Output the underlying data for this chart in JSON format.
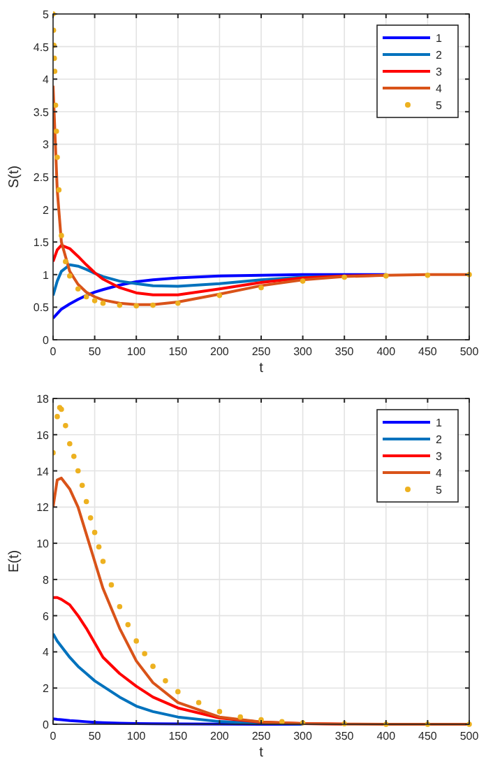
{
  "chart_data": [
    {
      "type": "line",
      "xlabel": "t",
      "ylabel": "S(t)",
      "xlim": [
        0,
        500
      ],
      "ylim": [
        0,
        5
      ],
      "xticks": [
        0,
        50,
        100,
        150,
        200,
        250,
        300,
        350,
        400,
        450,
        500
      ],
      "yticks": [
        0,
        0.5,
        1,
        1.5,
        2,
        2.5,
        3,
        3.5,
        4,
        4.5,
        5
      ],
      "grid": true,
      "legend": "top right",
      "marker": "none",
      "x": [
        0,
        5,
        10,
        20,
        30,
        40,
        50,
        60,
        80,
        100,
        120,
        150,
        200,
        250,
        300,
        350,
        400,
        450,
        500
      ],
      "series": [
        {
          "name": "1",
          "color": "#0000ff",
          "values": [
            0.33,
            0.4,
            0.47,
            0.55,
            0.62,
            0.68,
            0.73,
            0.77,
            0.84,
            0.89,
            0.92,
            0.95,
            0.98,
            0.99,
            1,
            1,
            1,
            null,
            null
          ]
        },
        {
          "name": "2",
          "color": "#0072bd",
          "values": [
            0.68,
            0.9,
            1.05,
            1.15,
            1.13,
            1.08,
            1.02,
            0.97,
            0.9,
            0.86,
            0.83,
            0.82,
            0.86,
            0.92,
            0.96,
            0.98,
            null,
            null,
            null
          ]
        },
        {
          "name": "3",
          "color": "#ff0000",
          "values": [
            1.2,
            1.38,
            1.45,
            1.4,
            1.28,
            1.15,
            1.03,
            0.93,
            0.8,
            0.72,
            0.69,
            0.69,
            0.78,
            0.88,
            0.95,
            0.98,
            0.99,
            null,
            null
          ]
        },
        {
          "name": "4",
          "color": "#d95319",
          "values": [
            3.9,
            2.3,
            1.5,
            1.05,
            0.85,
            0.73,
            0.66,
            0.61,
            0.56,
            0.54,
            0.54,
            0.58,
            0.7,
            0.83,
            0.92,
            0.97,
            0.99,
            1,
            1
          ]
        },
        {
          "name": "5",
          "color": "#edb120",
          "type": "scatter",
          "marker": "circle",
          "x": [
            0,
            0.5,
            1,
            1.5,
            2,
            3,
            4,
            5,
            7,
            10,
            15,
            20,
            30,
            40,
            50,
            60,
            80,
            100,
            120,
            150,
            200,
            250,
            300,
            350,
            400,
            450,
            500
          ],
          "values": [
            5,
            4.75,
            4.52,
            4.32,
            4.12,
            3.6,
            3.2,
            2.8,
            2.3,
            1.6,
            1.2,
            0.98,
            0.78,
            0.66,
            0.6,
            0.56,
            0.53,
            0.52,
            0.53,
            0.56,
            0.68,
            0.8,
            0.9,
            0.96,
            0.98,
            0.99,
            1
          ]
        }
      ]
    },
    {
      "type": "line",
      "xlabel": "t",
      "ylabel": "E(t)",
      "xlim": [
        0,
        500
      ],
      "ylim": [
        0,
        18
      ],
      "xticks": [
        0,
        50,
        100,
        150,
        200,
        250,
        300,
        350,
        400,
        450,
        500
      ],
      "yticks": [
        0,
        2,
        4,
        6,
        8,
        10,
        12,
        14,
        16,
        18
      ],
      "grid": true,
      "legend": "top right",
      "marker": "none",
      "x": [
        0,
        5,
        10,
        20,
        30,
        40,
        50,
        60,
        80,
        100,
        120,
        150,
        200,
        250,
        300,
        350,
        400,
        450,
        500
      ],
      "series": [
        {
          "name": "1",
          "color": "#0000ff",
          "values": [
            0.3,
            0.27,
            0.25,
            0.2,
            0.17,
            0.14,
            0.11,
            0.09,
            0.06,
            0.04,
            0.03,
            0.02,
            0.01,
            0,
            0,
            null,
            null,
            null,
            null
          ]
        },
        {
          "name": "2",
          "color": "#0072bd",
          "values": [
            5,
            4.6,
            4.3,
            3.7,
            3.2,
            2.8,
            2.4,
            2.1,
            1.5,
            1,
            0.7,
            0.4,
            0.15,
            0.05,
            0.02,
            null,
            null,
            null,
            null
          ]
        },
        {
          "name": "3",
          "color": "#ff0000",
          "values": [
            7,
            7,
            6.9,
            6.6,
            6,
            5.3,
            4.5,
            3.7,
            2.8,
            2.1,
            1.5,
            0.9,
            0.35,
            0.12,
            0.04,
            0.01,
            null,
            null,
            null
          ]
        },
        {
          "name": "4",
          "color": "#d95319",
          "values": [
            12,
            13.5,
            13.6,
            13,
            12,
            10.5,
            9,
            7.5,
            5.3,
            3.5,
            2.3,
            1.2,
            0.4,
            0.13,
            0.04,
            0.01,
            0,
            0,
            0
          ]
        },
        {
          "name": "5",
          "color": "#edb120",
          "type": "scatter",
          "marker": "circle",
          "x": [
            0,
            5,
            8,
            10,
            15,
            20,
            25,
            30,
            35,
            40,
            45,
            50,
            55,
            60,
            70,
            80,
            90,
            100,
            110,
            120,
            135,
            150,
            175,
            200,
            225,
            250,
            275,
            300,
            350,
            400,
            450,
            500
          ],
          "values": [
            15,
            17,
            17.5,
            17.4,
            16.5,
            15.5,
            14.8,
            14,
            13.2,
            12.3,
            11.4,
            10.6,
            9.8,
            9,
            7.7,
            6.5,
            5.5,
            4.6,
            3.9,
            3.2,
            2.4,
            1.8,
            1.2,
            0.7,
            0.4,
            0.25,
            0.14,
            0.08,
            0.03,
            0,
            0,
            0
          ]
        }
      ]
    }
  ]
}
